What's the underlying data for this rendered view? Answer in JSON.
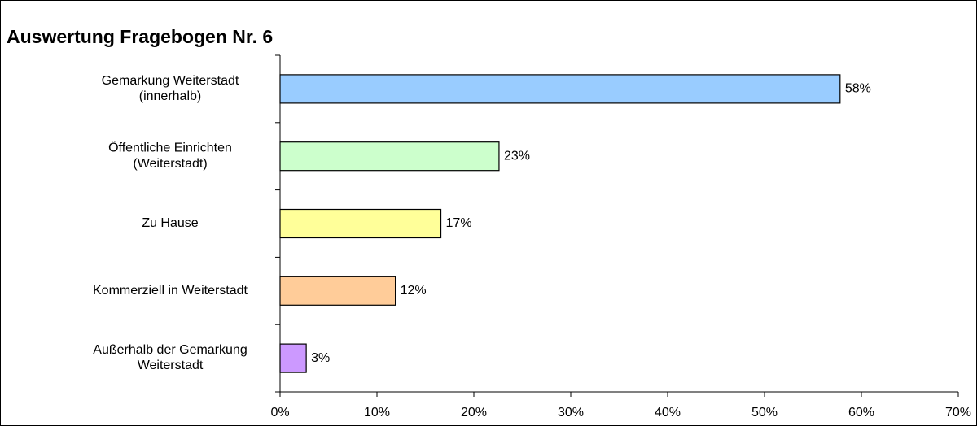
{
  "chart_data": {
    "type": "bar",
    "orientation": "horizontal",
    "title": "Auswertung Fragebogen Nr. 6",
    "categories": [
      "Gemarkung Weiterstadt\n(innerhalb)",
      "Öffentliche Einrichten\n(Weiterstadt)",
      "Zu Hause",
      "Kommerziell in Weiterstadt",
      "Außerhalb der Gemarkung\nWeiterstadt"
    ],
    "values": [
      57.8,
      22.6,
      16.6,
      11.9,
      2.7
    ],
    "value_labels": [
      "58%",
      "23%",
      "17%",
      "12%",
      "3%"
    ],
    "colors": [
      "#99ccff",
      "#ccffcc",
      "#ffff99",
      "#ffcc99",
      "#cc99ff"
    ],
    "xlim": [
      0,
      70
    ],
    "xticks": [
      {
        "value": 0,
        "label": "0%"
      },
      {
        "value": 10,
        "label": "10%"
      },
      {
        "value": 20,
        "label": "20%"
      },
      {
        "value": 30,
        "label": "30%"
      },
      {
        "value": 40,
        "label": "40%"
      },
      {
        "value": 50,
        "label": "50%"
      },
      {
        "value": 60,
        "label": "60%"
      },
      {
        "value": 70,
        "label": "70%"
      }
    ]
  }
}
